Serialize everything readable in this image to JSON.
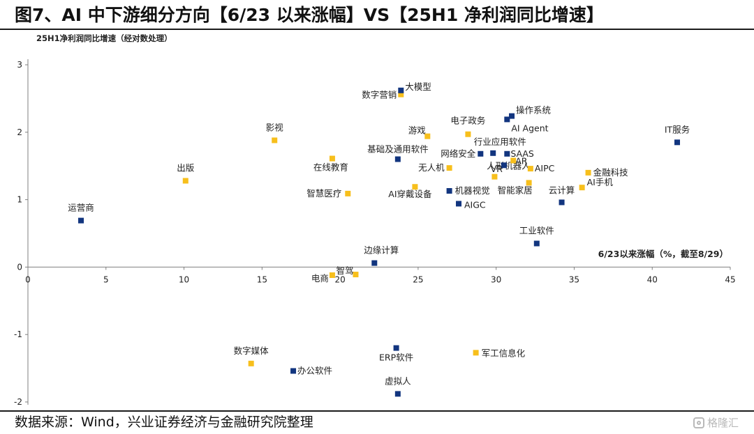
{
  "figure": {
    "title": "图7、AI 中下游细分方向【6/23 以来涨幅】VS【25H1 净利润同比增速】",
    "source": "数据来源：Wind，兴业证券经济与金融研究院整理",
    "watermark": "格隆汇"
  },
  "colors": {
    "navy": "#12357f",
    "yellow": "#f7bf1c",
    "axis": "#7f7f7f",
    "text": "#222222",
    "rule": "#1a1a1a"
  },
  "chart_data": {
    "type": "scatter",
    "ylabel": "25H1净利润同比增速（经对数处理）",
    "xlabel": "6/23以来涨幅（%，截至8/29）",
    "xlim": [
      0,
      45
    ],
    "ylim": [
      -2,
      3
    ],
    "x_ticks": [
      0,
      5,
      10,
      15,
      20,
      25,
      30,
      35,
      40,
      45
    ],
    "y_ticks": [
      -2,
      -1,
      0,
      1,
      2,
      3
    ],
    "grid": false,
    "points": [
      {
        "label": "运营商",
        "x": 3.4,
        "y": 0.69,
        "color": "navy"
      },
      {
        "label": "出版",
        "x": 10.1,
        "y": 1.28,
        "color": "yellow"
      },
      {
        "label": "数字媒体",
        "x": 14.3,
        "y": -1.43,
        "color": "yellow"
      },
      {
        "label": "影视",
        "x": 15.8,
        "y": 1.88,
        "color": "yellow"
      },
      {
        "label": "办公软件",
        "x": 17.0,
        "y": -1.54,
        "color": "navy"
      },
      {
        "label": "在线教育",
        "x": 19.5,
        "y": 1.61,
        "color": "yellow"
      },
      {
        "label": "电商",
        "x": 19.5,
        "y": -0.12,
        "color": "yellow"
      },
      {
        "label": "智慧医疗",
        "x": 20.5,
        "y": 1.09,
        "color": "yellow"
      },
      {
        "label": "智驾",
        "x": 21.0,
        "y": -0.11,
        "color": "yellow"
      },
      {
        "label": "边缘计算",
        "x": 22.2,
        "y": 0.06,
        "color": "navy"
      },
      {
        "label": "ERP软件",
        "x": 23.6,
        "y": -1.2,
        "color": "navy"
      },
      {
        "label": "虚拟人",
        "x": 23.7,
        "y": -1.88,
        "color": "navy"
      },
      {
        "label": "数字营销",
        "x": 23.9,
        "y": 2.56,
        "color": "yellow"
      },
      {
        "label": "大模型",
        "x": 23.9,
        "y": 2.62,
        "color": "navy"
      },
      {
        "label": "基础及通用软件",
        "x": 23.7,
        "y": 1.6,
        "color": "navy"
      },
      {
        "label": "AI穿戴设备",
        "x": 24.8,
        "y": 1.19,
        "color": "yellow"
      },
      {
        "label": "游戏",
        "x": 25.6,
        "y": 1.94,
        "color": "yellow"
      },
      {
        "label": "无人机",
        "x": 27.0,
        "y": 1.47,
        "color": "yellow"
      },
      {
        "label": "机器视觉",
        "x": 27.0,
        "y": 1.13,
        "color": "navy"
      },
      {
        "label": "AIGC",
        "x": 27.6,
        "y": 0.94,
        "color": "navy"
      },
      {
        "label": "电子政务",
        "x": 28.2,
        "y": 1.97,
        "color": "yellow"
      },
      {
        "label": "网络安全",
        "x": 29.0,
        "y": 1.68,
        "color": "navy"
      },
      {
        "label": "行业应用软件",
        "x": 29.8,
        "y": 1.69,
        "color": "navy"
      },
      {
        "label": "人形机器人",
        "x": 29.9,
        "y": 1.34,
        "color": "yellow"
      },
      {
        "label": "VR",
        "x": 30.5,
        "y": 1.51,
        "color": "navy"
      },
      {
        "label": "SAAS",
        "x": 30.7,
        "y": 1.68,
        "color": "navy"
      },
      {
        "label": "AI Agent",
        "x": 30.7,
        "y": 2.19,
        "color": "navy"
      },
      {
        "label": "操作系统",
        "x": 31.0,
        "y": 2.24,
        "color": "navy"
      },
      {
        "label": "AR",
        "x": 31.1,
        "y": 1.58,
        "color": "yellow"
      },
      {
        "label": "智能家居",
        "x": 32.1,
        "y": 1.25,
        "color": "yellow"
      },
      {
        "label": "AIPC",
        "x": 32.2,
        "y": 1.46,
        "color": "yellow"
      },
      {
        "label": "工业软件",
        "x": 32.6,
        "y": 0.35,
        "color": "navy"
      },
      {
        "label": "云计算",
        "x": 34.2,
        "y": 0.96,
        "color": "navy"
      },
      {
        "label": "AI手机",
        "x": 35.5,
        "y": 1.18,
        "color": "yellow"
      },
      {
        "label": "金融科技",
        "x": 35.9,
        "y": 1.4,
        "color": "yellow"
      },
      {
        "label": "IT服务",
        "x": 41.6,
        "y": 1.85,
        "color": "navy"
      },
      {
        "label": "军工信息化",
        "x": 28.7,
        "y": -1.27,
        "color": "yellow"
      }
    ]
  }
}
